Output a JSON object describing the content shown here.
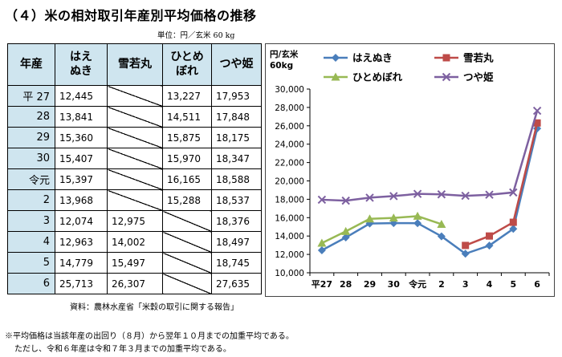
{
  "title": "（４）米の相対取引年産別平均価格の推移",
  "unit": "単位：円／玄米 60 kg",
  "table": {
    "headers": [
      "年産",
      "はえ\nぬき",
      "雪若丸",
      "ひとめ\nぼれ",
      "つや姫"
    ],
    "rows": [
      {
        "year": "平 27",
        "vals": [
          "12,445",
          "",
          "13,227",
          "17,953"
        ]
      },
      {
        "year": "28",
        "vals": [
          "13,841",
          "",
          "14,511",
          "17,848"
        ]
      },
      {
        "year": "29",
        "vals": [
          "15,360",
          "",
          "15,875",
          "18,175"
        ]
      },
      {
        "year": "30",
        "vals": [
          "15,407",
          "",
          "15,970",
          "18,347"
        ]
      },
      {
        "year": "令元",
        "vals": [
          "15,397",
          "",
          "16,165",
          "18,588"
        ]
      },
      {
        "year": "2",
        "vals": [
          "13,968",
          "",
          "15,288",
          "18,537"
        ]
      },
      {
        "year": "3",
        "vals": [
          "12,074",
          "12,975",
          "",
          "18,376"
        ]
      },
      {
        "year": "4",
        "vals": [
          "12,963",
          "14,002",
          "",
          "18,497"
        ]
      },
      {
        "year": "5",
        "vals": [
          "14,779",
          "15,497",
          "",
          "18,745"
        ]
      },
      {
        "year": "6",
        "vals": [
          "25,713",
          "26,307",
          "",
          "27,635"
        ]
      }
    ]
  },
  "source": "資料：農林水産省「米穀の取引に関する報告」",
  "notes": [
    "※平均価格は当該年産の出回り（８月）から翌年１０月までの加重平均である。",
    "ただし、令和６年産は令和７年３月までの加重平均である。"
  ],
  "chart_data": {
    "type": "line",
    "ylabel": "円/玄米\n60kg",
    "ylim": [
      10000,
      30000
    ],
    "yticks": [
      10000,
      12000,
      14000,
      16000,
      18000,
      20000,
      22000,
      24000,
      26000,
      28000,
      30000
    ],
    "categories": [
      "平27",
      "28",
      "29",
      "30",
      "令元",
      "2",
      "3",
      "4",
      "5",
      "6"
    ],
    "legend_position": "top",
    "series": [
      {
        "name": "はえぬき",
        "color": "#4a7ebb",
        "marker": "diamond",
        "values": [
          12445,
          13841,
          15360,
          15407,
          15397,
          13968,
          12074,
          12963,
          14779,
          25713
        ]
      },
      {
        "name": "雪若丸",
        "color": "#be4b48",
        "marker": "square",
        "values": [
          null,
          null,
          null,
          null,
          null,
          null,
          12975,
          14002,
          15497,
          26307
        ]
      },
      {
        "name": "ひとめぼれ",
        "color": "#98b954",
        "marker": "triangle",
        "values": [
          13227,
          14511,
          15875,
          15970,
          16165,
          15288,
          null,
          null,
          null,
          null
        ]
      },
      {
        "name": "つや姫",
        "color": "#7d60a0",
        "marker": "x",
        "values": [
          17953,
          17848,
          18175,
          18347,
          18588,
          18537,
          18376,
          18497,
          18745,
          27635
        ]
      }
    ]
  }
}
